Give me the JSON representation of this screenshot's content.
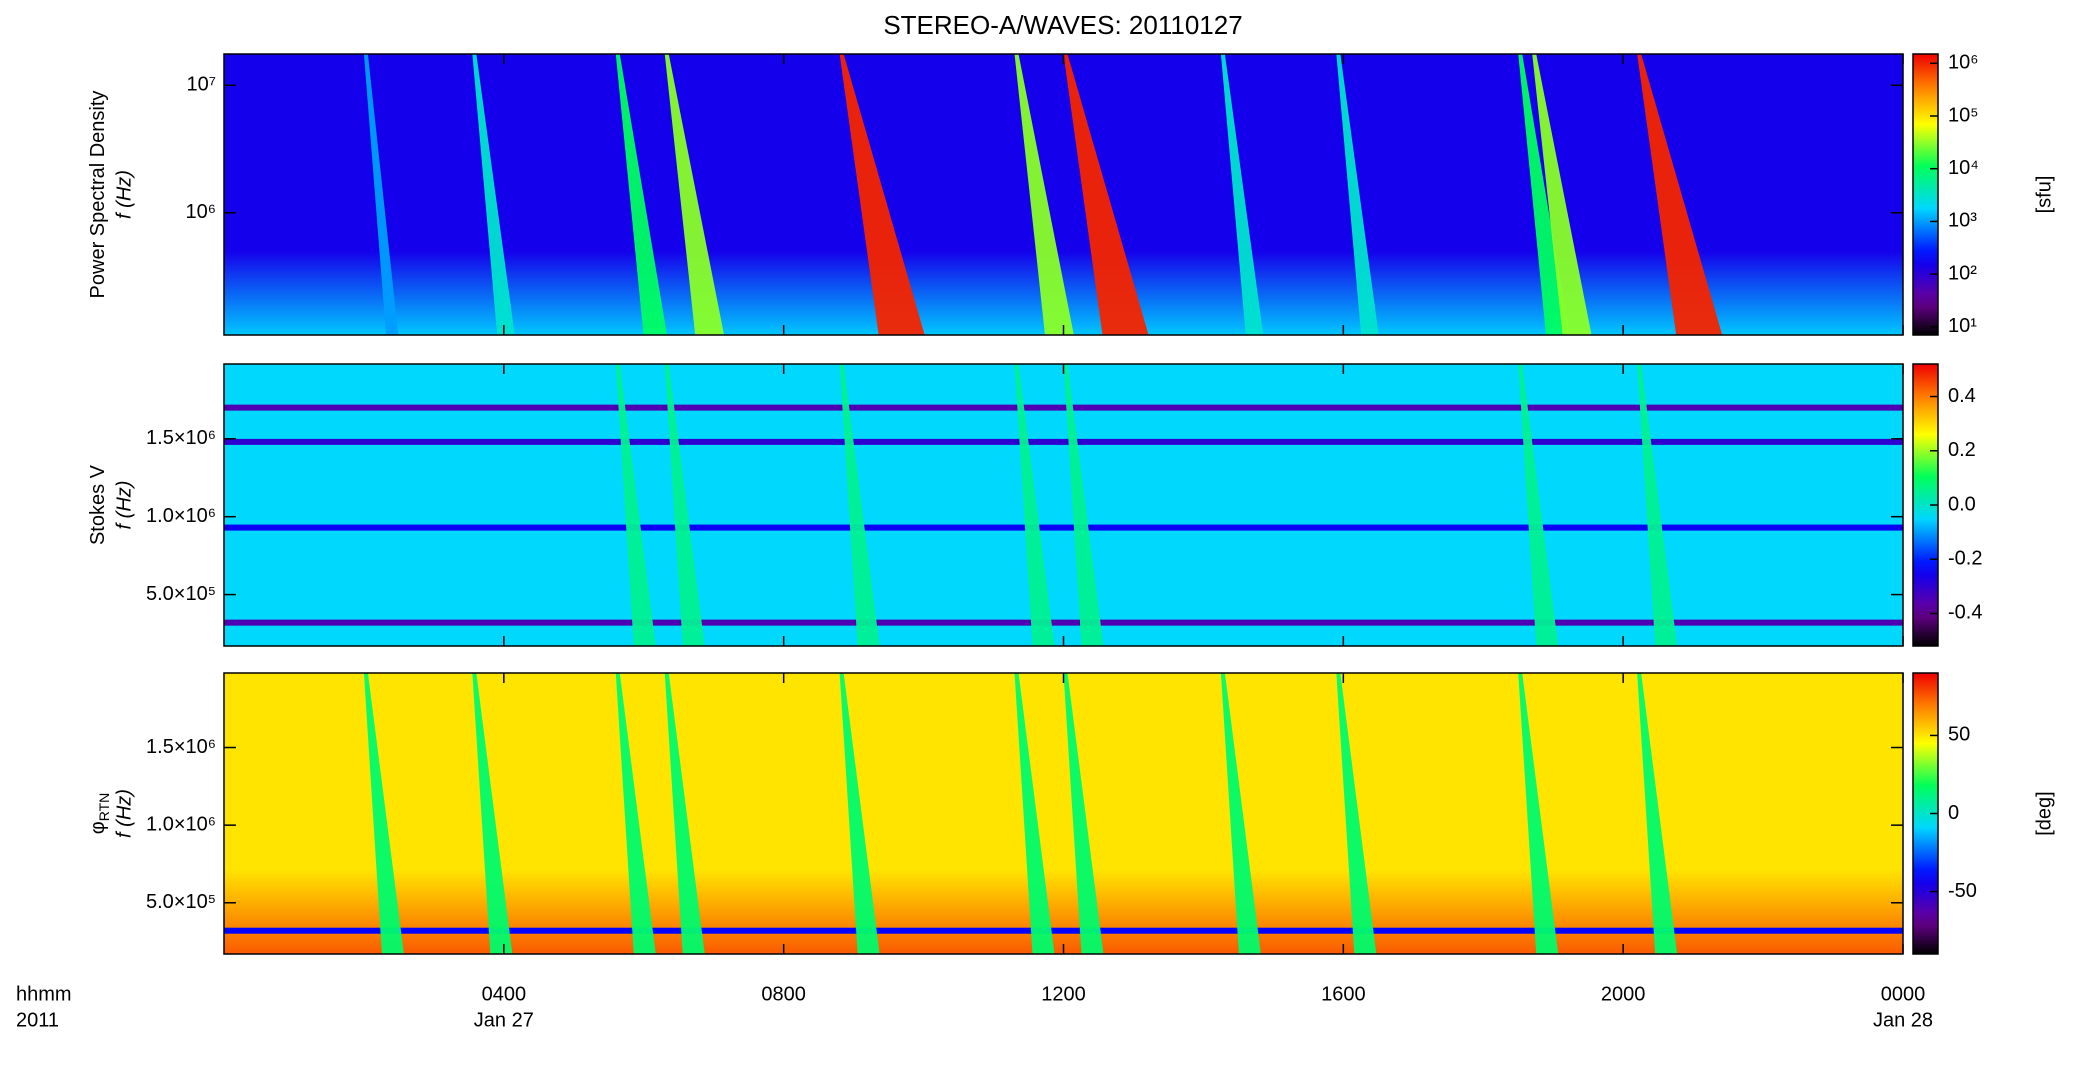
{
  "chart_data": [
    {
      "type": "heatmap",
      "title": "STEREO-A/WAVES: 20110127",
      "ylabel": "Power Spectral Density",
      "ylabel2": "f (Hz)",
      "xlim": [
        0,
        24
      ],
      "xticks": [
        4,
        8,
        12,
        16,
        20,
        24
      ],
      "ylog": true,
      "ylim": [
        110000,
        17600000
      ],
      "yticks": [
        {
          "value": 1000000,
          "label": "10⁶"
        },
        {
          "value": 10000000,
          "label": "10⁷"
        }
      ],
      "clog": true,
      "clim": [
        7,
        1500000
      ],
      "cticks": [
        {
          "value": 10,
          "label": "10¹"
        },
        {
          "value": 100,
          "label": "10²"
        },
        {
          "value": 1000,
          "label": "10³"
        },
        {
          "value": 10000,
          "label": "10⁴"
        },
        {
          "value": 100000,
          "label": "10⁵"
        },
        {
          "value": 1000000,
          "label": "10⁶"
        }
      ],
      "clabel": "[sfu]",
      "background": [
        150,
        1500
      ],
      "bursts": {
        "x": [
          2.0,
          3.55,
          5.6,
          6.3,
          8.8,
          11.3,
          12.0,
          14.25,
          15.9,
          18.5,
          18.7,
          20.2
        ],
        "values": [
          1000,
          3000,
          10000,
          30000,
          1000000,
          30000,
          1000000,
          3000,
          3000,
          10000,
          30000,
          1000000
        ]
      },
      "lines": {
        "y": [],
        "values": []
      }
    },
    {
      "type": "heatmap",
      "ylabel": "Stokes V",
      "ylabel2": "f (Hz)",
      "xlim": [
        0,
        24
      ],
      "xticks": [
        4,
        8,
        12,
        16,
        20,
        24
      ],
      "ylog": false,
      "ylim": [
        170000,
        1980000
      ],
      "yticks": [
        {
          "value": 500000,
          "label": "5.0×10⁵"
        },
        {
          "value": 1000000,
          "label": "1.0×10⁶"
        },
        {
          "value": 1500000,
          "label": "1.5×10⁶"
        }
      ],
      "clog": false,
      "clim": [
        -0.52,
        0.52
      ],
      "cticks": [
        -0.4,
        -0.2,
        {
          "value": 0,
          "label": "0.0"
        },
        0.2,
        0.4
      ],
      "background": [
        -0.05,
        -0.05
      ],
      "bursts": {
        "x": [
          5.6,
          6.3,
          8.8,
          11.3,
          12.0,
          18.5,
          20.2
        ],
        "values": [
          0.05,
          0.05,
          0.05,
          0.05,
          0.05,
          0.05,
          0.05
        ]
      },
      "lines": {
        "y": [
          1700000,
          1480000,
          930000,
          320000
        ],
        "values": [
          -0.35,
          -0.3,
          -0.25,
          -0.35
        ]
      }
    },
    {
      "type": "heatmap",
      "ylabel": "φ",
      "ylabel_sub": "RTN",
      "ylabel2": "f (Hz)",
      "xlim": [
        0,
        24
      ],
      "xticks": [
        {
          "value": 4,
          "label": "0400"
        },
        {
          "value": 8,
          "label": "0800"
        },
        {
          "value": 12,
          "label": "1200"
        },
        {
          "value": 16,
          "label": "1600"
        },
        {
          "value": 20,
          "label": "2000"
        },
        {
          "value": 24,
          "label": "0000"
        }
      ],
      "dates": [
        {
          "value": 4,
          "label": "Jan 27"
        },
        {
          "value": 24,
          "label": "Jan 28"
        }
      ],
      "xlabel": "hhmm",
      "xlabel2": "2011",
      "ylog": false,
      "ylim": [
        170000,
        1980000
      ],
      "yticks": [
        {
          "value": 500000,
          "label": "5.0×10⁵"
        },
        {
          "value": 1000000,
          "label": "1.0×10⁶"
        },
        {
          "value": 1500000,
          "label": "1.5×10⁶"
        }
      ],
      "clog": false,
      "clim": [
        -90,
        90
      ],
      "cticks": [
        -50,
        0,
        50
      ],
      "clabel": "[deg]",
      "background": [
        50,
        75
      ],
      "bursts": {
        "x": [
          2.0,
          3.55,
          5.6,
          6.3,
          8.8,
          11.3,
          12.0,
          14.25,
          15.9,
          18.5,
          20.2
        ],
        "values": [
          15,
          15,
          15,
          15,
          15,
          15,
          15,
          15,
          15,
          15,
          15
        ]
      },
      "lines": {
        "y": [
          320000
        ],
        "values": [
          -40
        ]
      }
    }
  ]
}
